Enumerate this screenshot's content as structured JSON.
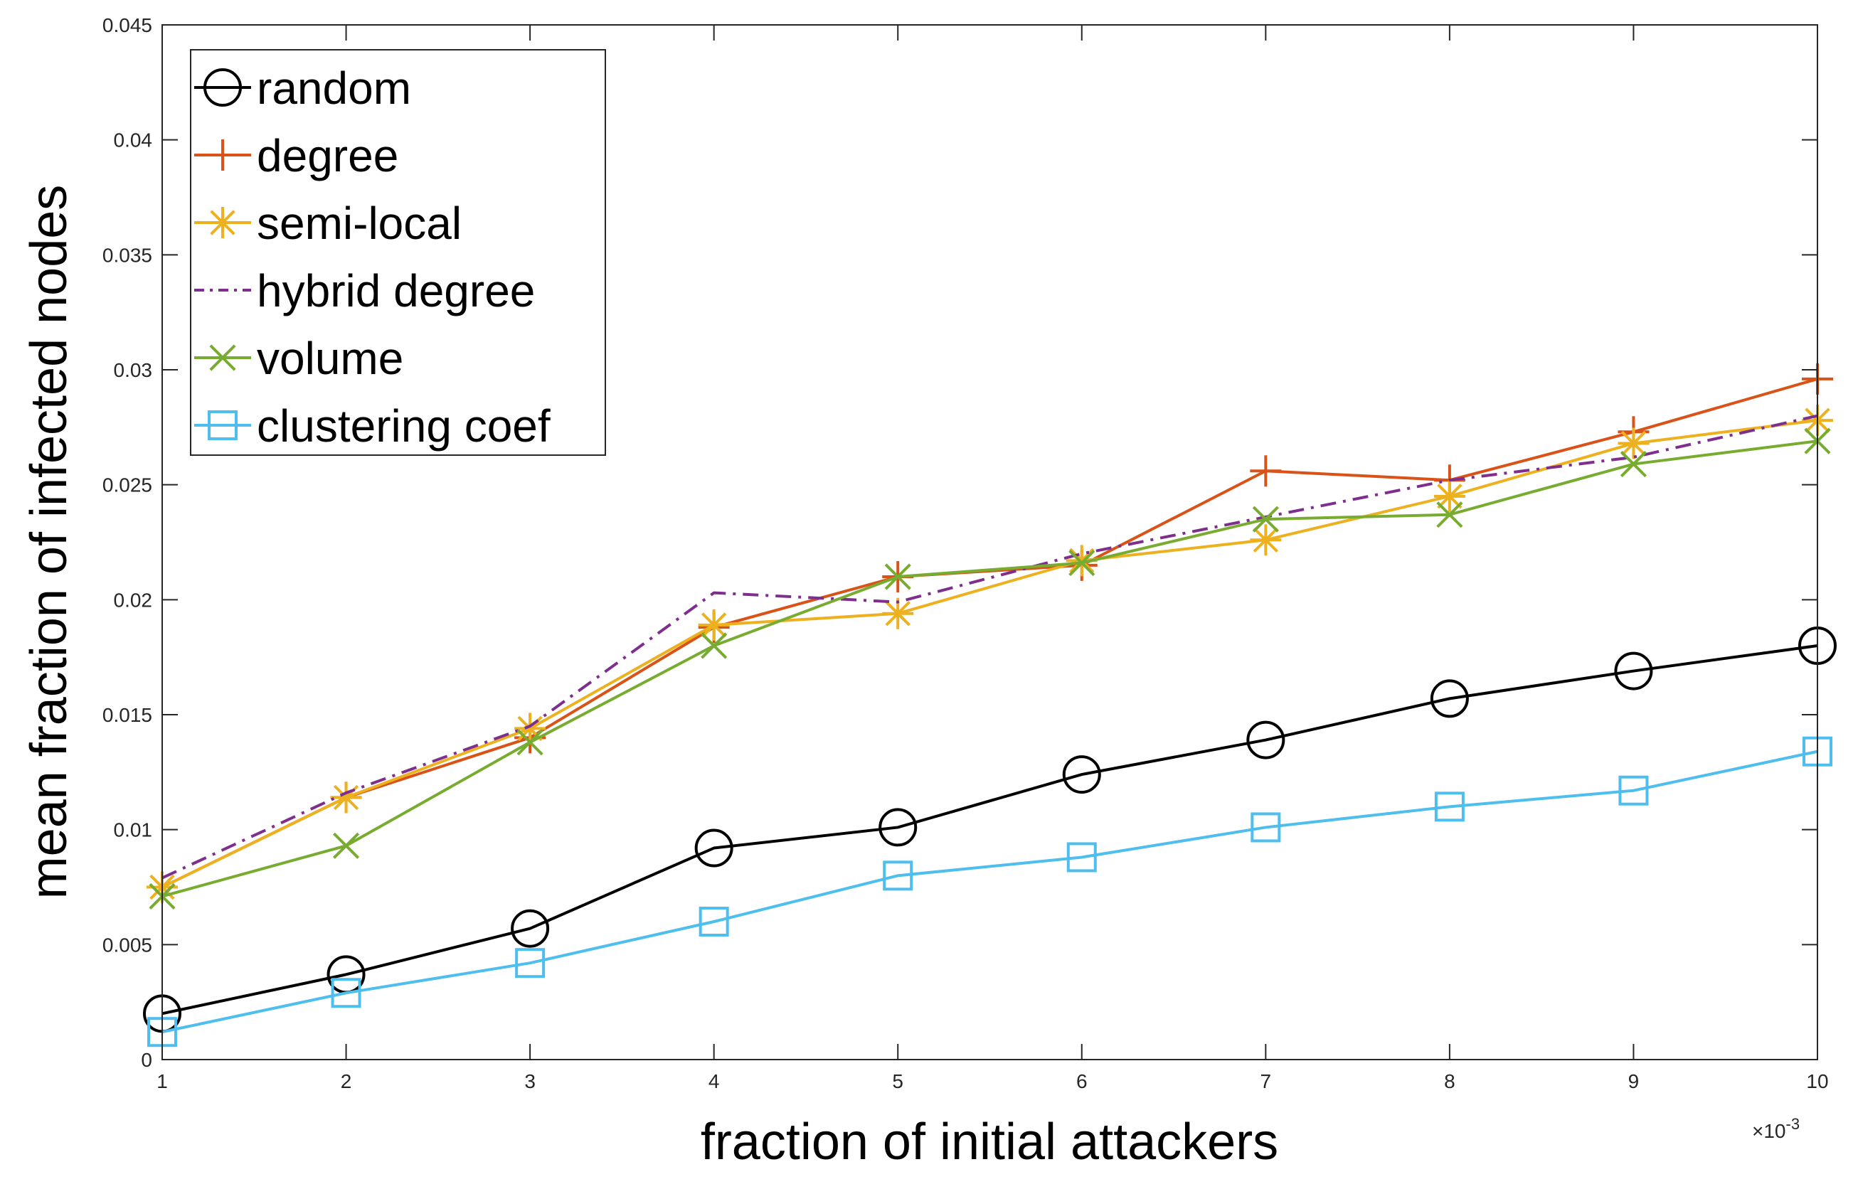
{
  "chart_data": {
    "type": "line",
    "title": "",
    "xlabel": "fraction of initial attackers",
    "ylabel": "mean fraction of infected nodes",
    "x_exponent_label": "×10",
    "x_exponent_power": "-3",
    "xlim": [
      1,
      10
    ],
    "ylim": [
      0,
      0.045
    ],
    "x_ticks": [
      1,
      2,
      3,
      4,
      5,
      6,
      7,
      8,
      9,
      10
    ],
    "x_tick_labels": [
      "1",
      "2",
      "3",
      "4",
      "5",
      "6",
      "7",
      "8",
      "9",
      "10"
    ],
    "y_ticks": [
      0,
      0.005,
      0.01,
      0.015,
      0.02,
      0.025,
      0.03,
      0.035,
      0.04,
      0.045
    ],
    "y_tick_labels": [
      "0",
      "0.005",
      "0.01",
      "0.015",
      "0.02",
      "0.025",
      "0.03",
      "0.035",
      "0.04",
      "0.045"
    ],
    "grid": false,
    "legend_position": "top-left",
    "x": [
      1,
      2,
      3,
      4,
      5,
      6,
      7,
      8,
      9,
      10
    ],
    "series": [
      {
        "name": "random",
        "color": "#000000",
        "marker": "circle",
        "dash": "solid",
        "values": [
          0.002,
          0.0037,
          0.0057,
          0.0092,
          0.0101,
          0.0124,
          0.0139,
          0.0157,
          0.0169,
          0.018
        ]
      },
      {
        "name": "degree",
        "color": "#D95319",
        "marker": "plus",
        "dash": "solid",
        "values": [
          0.0075,
          0.0114,
          0.014,
          0.0188,
          0.021,
          0.0215,
          0.0256,
          0.0252,
          0.0273,
          0.0296
        ]
      },
      {
        "name": "semi-local",
        "color": "#EDB120",
        "marker": "asterisk",
        "dash": "solid",
        "values": [
          0.0075,
          0.0114,
          0.0144,
          0.0189,
          0.0194,
          0.0217,
          0.0226,
          0.0245,
          0.0268,
          0.0278
        ]
      },
      {
        "name": "hybrid degree",
        "color": "#7E2F8E",
        "marker": "none",
        "dash": "dashdot",
        "values": [
          0.0079,
          0.0116,
          0.0145,
          0.0203,
          0.0199,
          0.022,
          0.0236,
          0.0252,
          0.0262,
          0.028
        ]
      },
      {
        "name": "volume",
        "color": "#77AC30",
        "marker": "x",
        "dash": "solid",
        "values": [
          0.0071,
          0.0093,
          0.0138,
          0.018,
          0.021,
          0.0216,
          0.0235,
          0.0237,
          0.0259,
          0.0269
        ]
      },
      {
        "name": "clustering coef",
        "color": "#4DBEEE",
        "marker": "square",
        "dash": "solid",
        "values": [
          0.0012,
          0.0029,
          0.0042,
          0.006,
          0.008,
          0.0088,
          0.0101,
          0.011,
          0.0117,
          0.0134
        ]
      }
    ]
  }
}
